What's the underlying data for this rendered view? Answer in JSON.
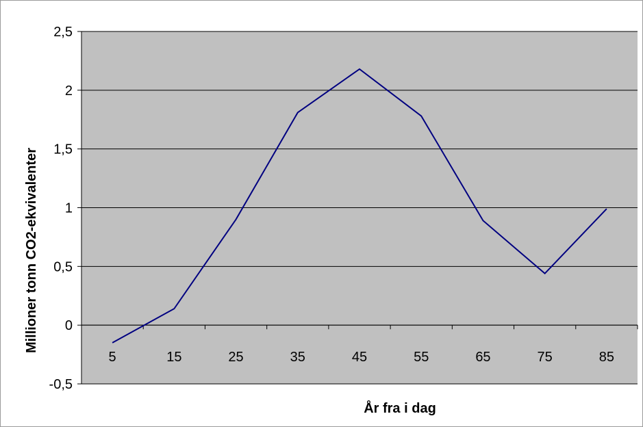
{
  "chart_data": {
    "type": "line",
    "title": "",
    "xlabel": "År fra i dag",
    "ylabel": "Millioner tonn CO2-ekvivalenter",
    "categories": [
      "5",
      "15",
      "25",
      "35",
      "45",
      "55",
      "65",
      "75",
      "85"
    ],
    "series": [
      {
        "values": [
          -0.15,
          0.14,
          0.9,
          1.81,
          2.18,
          1.78,
          0.89,
          0.44,
          0.99
        ]
      }
    ],
    "ylim": [
      -0.5,
      2.5
    ],
    "yticks": [
      -0.5,
      0,
      0.5,
      1,
      1.5,
      2,
      2.5
    ],
    "ytick_labels": [
      "-0,5",
      "0",
      "0,5",
      "1",
      "1,5",
      "2",
      "2,5"
    ],
    "grid": true,
    "legend": "none",
    "colors": {
      "plot_background": "#c0c0c0",
      "line": "#000080",
      "gridline": "#000000",
      "frame": "#9a9a9a"
    }
  }
}
